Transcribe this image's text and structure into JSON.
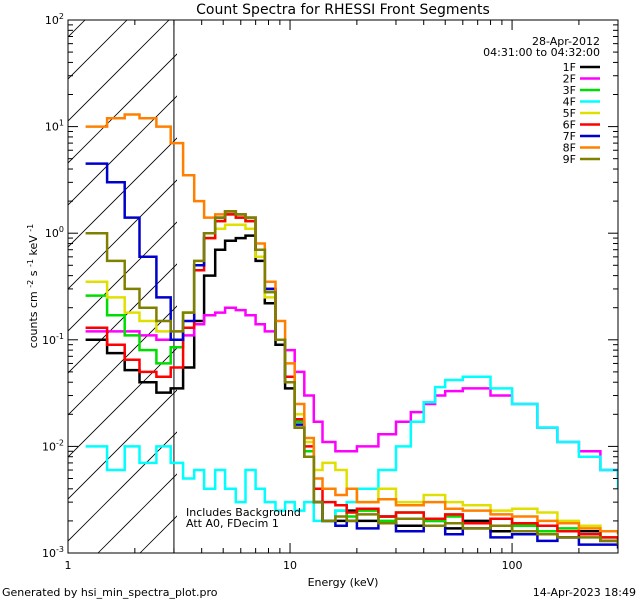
{
  "chart_data": {
    "type": "line",
    "title": "Count Spectra for RHESSI Front Segments",
    "xlabel": "Energy (keV)",
    "ylabel_parts": {
      "pre": "counts cm",
      "exp1": "-2",
      "mid": " s",
      "exp2": "-1",
      "post": " keV",
      "exp3": "-1"
    },
    "x_scale": "log",
    "y_scale": "log",
    "xlim": [
      1,
      300
    ],
    "ylim": [
      0.001,
      100
    ],
    "x_major_ticks": [
      {
        "value": 1,
        "label": "1"
      },
      {
        "value": 10,
        "label": "10"
      },
      {
        "value": 100,
        "label": "100"
      }
    ],
    "y_major_ticks": [
      {
        "value": 0.001,
        "base": "10",
        "exp": "-3"
      },
      {
        "value": 0.01,
        "base": "10",
        "exp": "-2"
      },
      {
        "value": 0.1,
        "base": "10",
        "exp": "-1"
      },
      {
        "value": 1,
        "base": "10",
        "exp": "0"
      },
      {
        "value": 10,
        "base": "10",
        "exp": "1"
      },
      {
        "value": 100,
        "base": "10",
        "exp": "2"
      }
    ],
    "date": "28-Apr-2012",
    "time_range": "04:31:00 to 04:32:00",
    "annotations": [
      "Includes Background",
      "Att A0, FDecim 1"
    ],
    "hatched_region": [
      1,
      3
    ],
    "series": [
      {
        "name": "1F",
        "color": "#000000",
        "x": [
          1.2,
          1.5,
          1.8,
          2.1,
          2.5,
          2.9,
          3.3,
          3.7,
          4.1,
          4.6,
          5.1,
          5.7,
          6.3,
          7,
          7.7,
          8.6,
          9.5,
          10.5,
          11.6,
          12.8,
          14,
          16,
          18,
          20,
          25,
          30,
          40,
          50,
          60,
          80,
          100,
          130,
          160,
          200,
          250,
          300
        ],
        "y": [
          0.1,
          0.075,
          0.052,
          0.04,
          0.032,
          0.035,
          0.055,
          0.15,
          0.4,
          0.7,
          0.85,
          0.9,
          0.95,
          0.55,
          0.22,
          0.09,
          0.035,
          0.015,
          0.008,
          0.003,
          0.002,
          0.002,
          0.0025,
          0.002,
          0.0022,
          0.0018,
          0.002,
          0.0017,
          0.002,
          0.0016,
          0.0019,
          0.0015,
          0.0014,
          0.0016,
          0.0013,
          0.0012
        ]
      },
      {
        "name": "2F",
        "color": "#ff00ff",
        "x": [
          1.2,
          1.5,
          1.8,
          2.1,
          2.5,
          2.9,
          3.3,
          3.7,
          4.1,
          4.6,
          5.1,
          5.7,
          6.3,
          7,
          7.7,
          8.6,
          9.5,
          10.5,
          11.6,
          12.8,
          14,
          16,
          18,
          20,
          25,
          30,
          35,
          40,
          45,
          50,
          60,
          80,
          100,
          130,
          160,
          200,
          250,
          300
        ],
        "y": [
          0.12,
          0.12,
          0.12,
          0.11,
          0.1,
          0.1,
          0.11,
          0.14,
          0.17,
          0.18,
          0.2,
          0.19,
          0.17,
          0.14,
          0.12,
          0.1,
          0.08,
          0.05,
          0.03,
          0.017,
          0.011,
          0.009,
          0.009,
          0.01,
          0.013,
          0.017,
          0.021,
          0.025,
          0.03,
          0.033,
          0.035,
          0.03,
          0.025,
          0.015,
          0.011,
          0.009,
          0.006,
          0.005
        ]
      },
      {
        "name": "3F",
        "color": "#00dd00",
        "x": [
          1.2,
          1.5,
          1.8,
          2.1,
          2.5,
          2.9,
          3.3,
          3.7,
          4.1,
          4.6,
          5.1,
          5.7,
          6.3,
          7,
          7.7,
          8.6,
          9.5,
          10.5,
          11.6,
          12.8,
          14,
          16,
          18,
          20,
          25,
          30,
          40,
          50,
          60,
          80,
          100,
          130,
          160,
          200,
          250,
          300
        ],
        "y": [
          0.26,
          0.17,
          0.11,
          0.08,
          0.06,
          0.085,
          0.18,
          0.5,
          0.9,
          1.3,
          1.5,
          1.4,
          1.3,
          0.7,
          0.28,
          0.1,
          0.04,
          0.017,
          0.009,
          0.003,
          0.002,
          0.0025,
          0.0022,
          0.0025,
          0.002,
          0.0024,
          0.002,
          0.0022,
          0.0019,
          0.0021,
          0.0018,
          0.0016,
          0.0017,
          0.0015,
          0.0014,
          0.0013
        ]
      },
      {
        "name": "4F",
        "color": "#00ffff",
        "x": [
          1.2,
          1.5,
          1.8,
          2.1,
          2.5,
          2.9,
          3.3,
          3.7,
          4.1,
          4.6,
          5.1,
          5.7,
          6.3,
          7,
          7.7,
          8.6,
          9.5,
          10.5,
          11.6,
          12.8,
          14,
          16,
          18,
          20,
          25,
          30,
          35,
          40,
          45,
          50,
          60,
          80,
          100,
          130,
          160,
          200,
          250,
          300
        ],
        "y": [
          0.01,
          0.006,
          0.01,
          0.007,
          0.01,
          0.007,
          0.005,
          0.006,
          0.004,
          0.006,
          0.004,
          0.003,
          0.006,
          0.004,
          0.003,
          0.0025,
          0.003,
          0.0025,
          0.003,
          0.002,
          0.002,
          0.0025,
          0.003,
          0.004,
          0.006,
          0.01,
          0.017,
          0.026,
          0.036,
          0.042,
          0.045,
          0.035,
          0.025,
          0.015,
          0.011,
          0.008,
          0.006,
          0.004
        ]
      },
      {
        "name": "5F",
        "color": "#e0e000",
        "x": [
          1.2,
          1.5,
          1.8,
          2.1,
          2.5,
          2.9,
          3.3,
          3.7,
          4.1,
          4.6,
          5.1,
          5.7,
          6.3,
          7,
          7.7,
          8.6,
          9.5,
          10.5,
          11.6,
          12.8,
          14,
          16,
          18,
          20,
          25,
          30,
          40,
          50,
          60,
          80,
          100,
          130,
          160,
          200,
          250,
          300
        ],
        "y": [
          0.35,
          0.25,
          0.18,
          0.15,
          0.12,
          0.12,
          0.18,
          0.5,
          0.9,
          1.1,
          1.2,
          1.2,
          1.1,
          0.6,
          0.25,
          0.1,
          0.04,
          0.02,
          0.011,
          0.006,
          0.007,
          0.006,
          0.004,
          0.003,
          0.004,
          0.003,
          0.0035,
          0.003,
          0.0028,
          0.0025,
          0.0026,
          0.0024,
          0.002,
          0.0018,
          0.0016,
          0.0015
        ]
      },
      {
        "name": "6F",
        "color": "#ff0000",
        "x": [
          1.2,
          1.5,
          1.8,
          2.1,
          2.5,
          2.9,
          3.3,
          3.7,
          4.1,
          4.6,
          5.1,
          5.7,
          6.3,
          7,
          7.7,
          8.6,
          9.5,
          10.5,
          11.6,
          12.8,
          14,
          16,
          18,
          20,
          25,
          30,
          40,
          50,
          60,
          80,
          100,
          130,
          160,
          200,
          250,
          300
        ],
        "y": [
          0.13,
          0.09,
          0.065,
          0.05,
          0.045,
          0.055,
          0.13,
          0.45,
          0.9,
          1.3,
          1.5,
          1.4,
          1.3,
          0.7,
          0.3,
          0.1,
          0.045,
          0.018,
          0.01,
          0.004,
          0.003,
          0.0028,
          0.0024,
          0.0026,
          0.0022,
          0.0024,
          0.0021,
          0.0023,
          0.0019,
          0.0021,
          0.0019,
          0.0018,
          0.0016,
          0.0015,
          0.0014,
          0.0013
        ]
      },
      {
        "name": "7F",
        "color": "#0000cc",
        "x": [
          1.2,
          1.5,
          1.8,
          2.1,
          2.5,
          2.9,
          3.3,
          3.7,
          4.1,
          4.6,
          5.1,
          5.7,
          6.3,
          7,
          7.7,
          8.6,
          9.5,
          10.5,
          11.6,
          12.8,
          14,
          16,
          18,
          20,
          25,
          30,
          40,
          50,
          60,
          80,
          100,
          130,
          160,
          200,
          250,
          300
        ],
        "y": [
          4.5,
          3.0,
          1.4,
          0.6,
          0.25,
          0.1,
          0.15,
          0.5,
          1.0,
          1.4,
          1.6,
          1.5,
          1.4,
          0.7,
          0.3,
          0.1,
          0.04,
          0.016,
          0.008,
          0.003,
          0.002,
          0.0018,
          0.002,
          0.0017,
          0.0019,
          0.0016,
          0.0018,
          0.0015,
          0.0017,
          0.0014,
          0.0015,
          0.0013,
          0.0014,
          0.0012,
          0.0012,
          0.0011
        ]
      },
      {
        "name": "8F",
        "color": "#ff8000",
        "x": [
          1.2,
          1.5,
          1.8,
          2.1,
          2.5,
          2.9,
          3.3,
          3.7,
          4.1,
          4.6,
          5.1,
          5.7,
          6.3,
          7,
          7.7,
          8.6,
          9.5,
          10.5,
          11.6,
          12.8,
          14,
          16,
          18,
          20,
          25,
          30,
          40,
          50,
          60,
          80,
          100,
          130,
          160,
          200,
          250,
          300
        ],
        "y": [
          10,
          12,
          13,
          12,
          10,
          7,
          3.5,
          2.0,
          1.4,
          1.5,
          1.6,
          1.5,
          1.4,
          0.8,
          0.35,
          0.15,
          0.06,
          0.025,
          0.012,
          0.005,
          0.004,
          0.0035,
          0.004,
          0.003,
          0.0032,
          0.0028,
          0.003,
          0.0026,
          0.0025,
          0.0023,
          0.0022,
          0.002,
          0.0019,
          0.0017,
          0.0016,
          0.0015
        ]
      },
      {
        "name": "9F",
        "color": "#808000",
        "x": [
          1.2,
          1.5,
          1.8,
          2.1,
          2.5,
          2.9,
          3.3,
          3.7,
          4.1,
          4.6,
          5.1,
          5.7,
          6.3,
          7,
          7.7,
          8.6,
          9.5,
          10.5,
          11.6,
          12.8,
          14,
          16,
          18,
          20,
          25,
          30,
          40,
          50,
          60,
          80,
          100,
          130,
          160,
          200,
          250,
          300
        ],
        "y": [
          1.0,
          0.55,
          0.3,
          0.2,
          0.15,
          0.12,
          0.18,
          0.55,
          1.0,
          1.4,
          1.6,
          1.5,
          1.4,
          0.7,
          0.28,
          0.1,
          0.04,
          0.015,
          0.008,
          0.003,
          0.002,
          0.0022,
          0.002,
          0.0023,
          0.0019,
          0.0021,
          0.0018,
          0.0019,
          0.0017,
          0.0018,
          0.0016,
          0.0015,
          0.0014,
          0.0014,
          0.0013,
          0.0012
        ]
      }
    ]
  },
  "footer": {
    "generated_by": "Generated by hsi_min_spectra_plot.pro",
    "timestamp": "14-Apr-2023 18:49"
  }
}
